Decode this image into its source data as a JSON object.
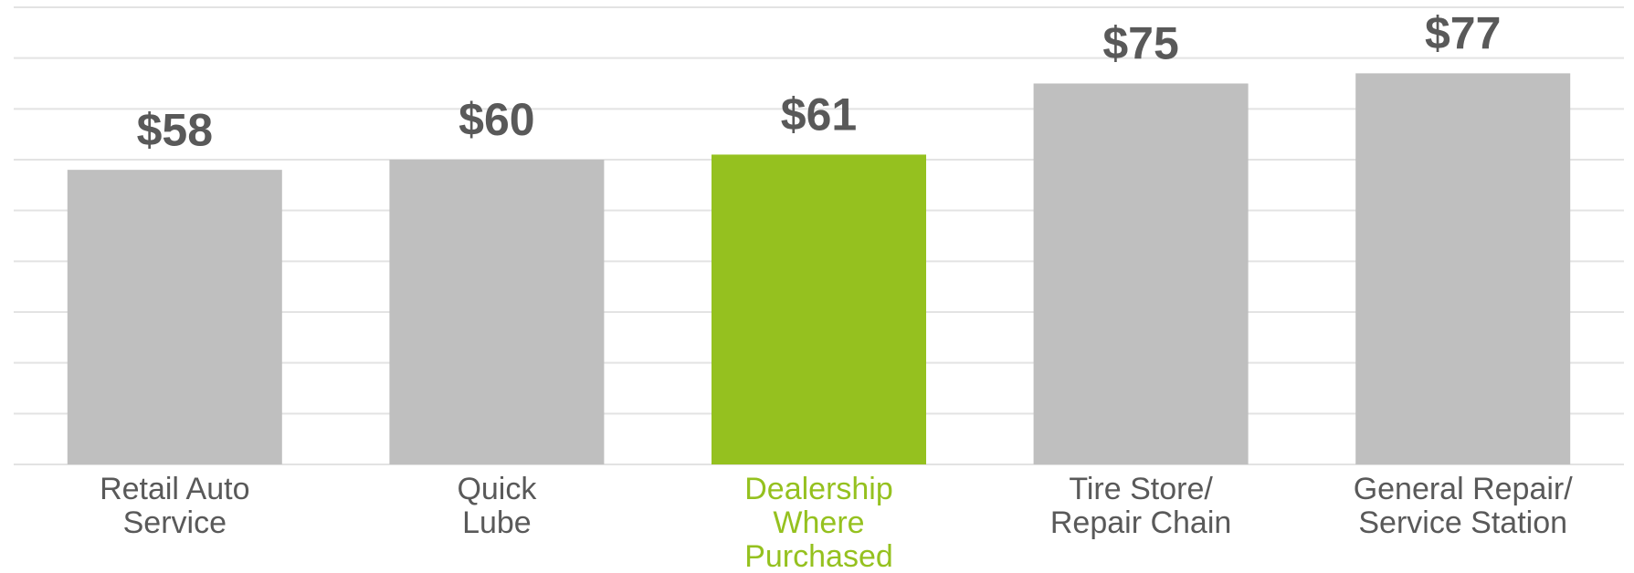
{
  "chart_data": {
    "type": "bar",
    "categories": [
      "Retail Auto\nService",
      "Quick\nLube",
      "Dealership\nWhere\nPurchased",
      "Tire Store/\nRepair Chain",
      "General Repair/\nService Station"
    ],
    "values": [
      58,
      60,
      61,
      75,
      77
    ],
    "value_labels": [
      "$58",
      "$60",
      "$61",
      "$75",
      "$77"
    ],
    "colors": [
      "#bfbfbf",
      "#bfbfbf",
      "#95c11f",
      "#bfbfbf",
      "#bfbfbf"
    ],
    "ylim": [
      0,
      90
    ],
    "yticks": [
      0,
      10,
      20,
      30,
      40,
      50,
      60,
      70,
      80,
      90
    ],
    "grid": true
  }
}
